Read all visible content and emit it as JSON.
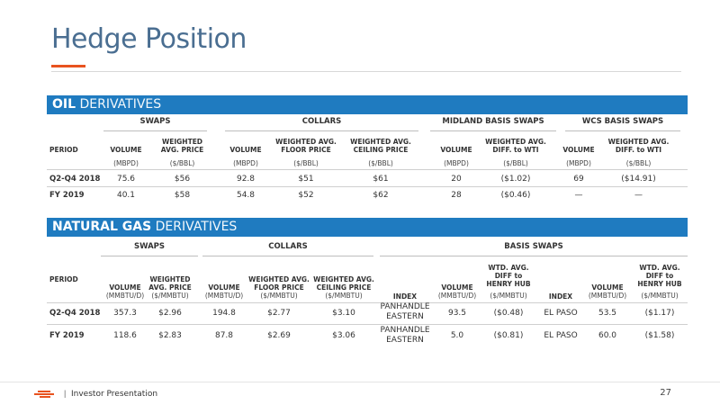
{
  "title": "Hedge Position",
  "oil": {
    "band_bold": "OIL",
    "band_light": "DERIVATIVES",
    "groups": {
      "swaps": "SWAPS",
      "collars": "COLLARS",
      "midland": "MIDLAND BASIS SWAPS",
      "wcs": "WCS BASIS SWAPS"
    },
    "headers": {
      "period": "PERIOD",
      "volume": "VOLUME",
      "wavg_price_1": "WEIGHTED",
      "wavg_price_2": "AVG. PRICE",
      "floor_1": "WEIGHTED AVG.",
      "floor_2": "FLOOR PRICE",
      "ceiling_1": "WEIGHTED AVG.",
      "ceiling_2": "CEILING PRICE",
      "diff_1": "WEIGHTED AVG.",
      "diff_2": "DIFF. to WTI"
    },
    "units": {
      "mbpd": "(MBPD)",
      "bbl": "($/BBL)"
    },
    "rows": [
      {
        "period": "Q2-Q4 2018",
        "swap_vol": "75.6",
        "swap_price": "$56",
        "col_vol": "92.8",
        "floor": "$51",
        "ceiling": "$61",
        "mid_vol": "20",
        "mid_diff": "($1.02)",
        "wcs_vol": "69",
        "wcs_diff": "($14.91)"
      },
      {
        "period": "FY 2019",
        "swap_vol": "40.1",
        "swap_price": "$58",
        "col_vol": "54.8",
        "floor": "$52",
        "ceiling": "$62",
        "mid_vol": "28",
        "mid_diff": "($0.46)",
        "wcs_vol": "—",
        "wcs_diff": "—"
      }
    ]
  },
  "gas": {
    "band_bold": "NATURAL GAS",
    "band_light": "DERIVATIVES",
    "groups": {
      "swaps": "SWAPS",
      "collars": "COLLARS",
      "basis": "BASIS SWAPS"
    },
    "headers": {
      "period": "PERIOD",
      "volume": "VOLUME",
      "wavg_1": "WEIGHTED",
      "wavg_2": "AVG. PRICE",
      "floor_1": "WEIGHTED AVG.",
      "floor_2": "FLOOR PRICE",
      "ceiling_1": "WEIGHTED AVG.",
      "ceiling_2": "CEILING PRICE",
      "index": "INDEX",
      "wtd_1": "WTD. AVG.",
      "wtd_2": "DIFF to",
      "wtd_3": "HENRY HUB"
    },
    "units": {
      "mmbtud": "(MMBTU/D)",
      "mmbtu": "($/MMBTU)"
    },
    "rows": [
      {
        "period": "Q2-Q4 2018",
        "swap_vol": "357.3",
        "swap_price": "$2.96",
        "col_vol": "194.8",
        "floor": "$2.77",
        "ceiling": "$3.10",
        "index1_a": "PANHANDLE",
        "index1_b": "EASTERN",
        "b1_vol": "93.5",
        "b1_diff": "($0.48)",
        "index2": "EL PASO",
        "b2_vol": "53.5",
        "b2_diff": "($1.17)"
      },
      {
        "period": "FY 2019",
        "swap_vol": "118.6",
        "swap_price": "$2.83",
        "col_vol": "87.8",
        "floor": "$2.69",
        "ceiling": "$3.06",
        "index1_a": "PANHANDLE",
        "index1_b": "EASTERN",
        "b1_vol": "5.0",
        "b1_diff": "($0.81)",
        "index2": "EL PASO",
        "b2_vol": "60.0",
        "b2_diff": "($1.58)"
      }
    ]
  },
  "footer": {
    "separator": "|",
    "text": "Investor Presentation",
    "page": "27"
  }
}
